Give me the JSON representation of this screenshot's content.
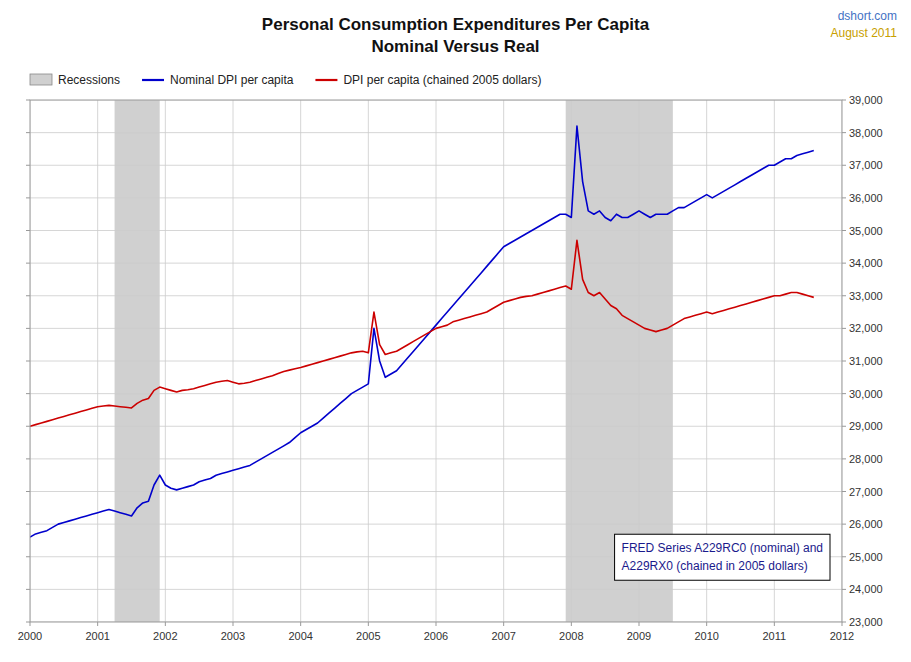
{
  "chart_data": {
    "type": "line",
    "title": "Personal Consumption Expenditures Per Capita",
    "subtitle": "Nominal Versus Real",
    "annotations": [
      "dshort.com",
      "August 2011",
      "FRED Series A229RC0 (nominal) and\nA229RX0 (chained in 2005 dollars)"
    ],
    "annotation_colors": [
      "#4472C4",
      "#C8A000",
      "#1a1a8c"
    ],
    "background_color": "#FFFFFF",
    "grid": true,
    "grid_color": "#CCCCCC",
    "legend": "top-left",
    "xlim": [
      2000,
      2012
    ],
    "ylim": [
      23000,
      39000
    ],
    "xticks": [
      2000,
      2001,
      2002,
      2003,
      2004,
      2005,
      2006,
      2007,
      2008,
      2009,
      2010,
      2011,
      2012
    ],
    "yticks": [
      {
        "value": 23000,
        "label": "23,000"
      },
      {
        "value": 24000,
        "label": "24,000"
      },
      {
        "value": 25000,
        "label": "25,000"
      },
      {
        "value": 26000,
        "label": "26,000"
      },
      {
        "value": 27000,
        "label": "27,000"
      },
      {
        "value": 28000,
        "label": "28,000"
      },
      {
        "value": 29000,
        "label": "29,000"
      },
      {
        "value": 30000,
        "label": "30,000"
      },
      {
        "value": 31000,
        "label": "31,000"
      },
      {
        "value": 32000,
        "label": "32,000"
      },
      {
        "value": 33000,
        "label": "33,000"
      },
      {
        "value": 34000,
        "label": "34,000"
      },
      {
        "value": 35000,
        "label": "35,000"
      },
      {
        "value": 36000,
        "label": "36,000"
      },
      {
        "value": 37000,
        "label": "37,000"
      },
      {
        "value": 38000,
        "label": "38,000"
      },
      {
        "value": 39000,
        "label": "39,000"
      }
    ],
    "recessions": {
      "name": "Recessions",
      "color": "#D0D0D0",
      "ranges": [
        [
          2001.25,
          2001.9167
        ],
        [
          2007.9167,
          2009.5
        ]
      ]
    },
    "x": [
      2000.0,
      2000.083,
      2000.167,
      2000.25,
      2000.333,
      2000.417,
      2000.5,
      2000.583,
      2000.667,
      2000.75,
      2000.833,
      2000.917,
      2001.0,
      2001.083,
      2001.167,
      2001.25,
      2001.333,
      2001.417,
      2001.5,
      2001.583,
      2001.667,
      2001.75,
      2001.833,
      2001.917,
      2002.0,
      2002.083,
      2002.167,
      2002.25,
      2002.333,
      2002.417,
      2002.5,
      2002.583,
      2002.667,
      2002.75,
      2002.833,
      2002.917,
      2003.0,
      2003.083,
      2003.167,
      2003.25,
      2003.333,
      2003.417,
      2003.5,
      2003.583,
      2003.667,
      2003.75,
      2003.833,
      2003.917,
      2004.0,
      2004.083,
      2004.167,
      2004.25,
      2004.333,
      2004.417,
      2004.5,
      2004.583,
      2004.667,
      2004.75,
      2004.833,
      2004.917,
      2005.0,
      2005.083,
      2005.167,
      2005.25,
      2005.333,
      2005.417,
      2005.5,
      2005.583,
      2005.667,
      2005.75,
      2005.833,
      2005.917,
      2006.0,
      2006.083,
      2006.167,
      2006.25,
      2006.333,
      2006.417,
      2006.5,
      2006.583,
      2006.667,
      2006.75,
      2006.833,
      2006.917,
      2007.0,
      2007.083,
      2007.167,
      2007.25,
      2007.333,
      2007.417,
      2007.5,
      2007.583,
      2007.667,
      2007.75,
      2007.833,
      2007.917,
      2008.0,
      2008.083,
      2008.167,
      2008.25,
      2008.333,
      2008.417,
      2008.5,
      2008.583,
      2008.667,
      2008.75,
      2008.833,
      2008.917,
      2009.0,
      2009.083,
      2009.167,
      2009.25,
      2009.333,
      2009.417,
      2009.5,
      2009.583,
      2009.667,
      2009.75,
      2009.833,
      2009.917,
      2010.0,
      2010.083,
      2010.167,
      2010.25,
      2010.333,
      2010.417,
      2010.5,
      2010.583,
      2010.667,
      2010.75,
      2010.833,
      2010.917,
      2011.0,
      2011.083,
      2011.167,
      2011.25,
      2011.333,
      2011.417,
      2011.5,
      2011.583
    ],
    "series": [
      {
        "name": "Nominal DPI per capita",
        "color": "#0000CC",
        "values": [
          25600,
          25700,
          25750,
          25800,
          25900,
          26000,
          26050,
          26100,
          26150,
          26200,
          26250,
          26300,
          26350,
          26400,
          26450,
          26400,
          26350,
          26300,
          26250,
          26500,
          26650,
          26700,
          27200,
          27500,
          27200,
          27100,
          27050,
          27100,
          27150,
          27200,
          27300,
          27350,
          27400,
          27500,
          27550,
          27600,
          27650,
          27700,
          27750,
          27800,
          27900,
          28000,
          28100,
          28200,
          28300,
          28400,
          28500,
          28650,
          28800,
          28900,
          29000,
          29100,
          29250,
          29400,
          29550,
          29700,
          29850,
          30000,
          30100,
          30200,
          30300,
          32000,
          31000,
          30500,
          30600,
          30700,
          30900,
          31100,
          31300,
          31500,
          31700,
          31900,
          32100,
          32300,
          32500,
          32700,
          32900,
          33100,
          33300,
          33500,
          33700,
          33900,
          34100,
          34300,
          34500,
          34600,
          34700,
          34800,
          34900,
          35000,
          35100,
          35200,
          35300,
          35400,
          35500,
          35500,
          35400,
          38200,
          36500,
          35600,
          35500,
          35600,
          35400,
          35300,
          35500,
          35400,
          35400,
          35500,
          35600,
          35500,
          35400,
          35500,
          35500,
          35500,
          35600,
          35700,
          35700,
          35800,
          35900,
          36000,
          36100,
          36000,
          36100,
          36200,
          36300,
          36400,
          36500,
          36600,
          36700,
          36800,
          36900,
          37000,
          37000,
          37100,
          37200,
          37200,
          37300,
          37350,
          37400,
          37450
        ]
      },
      {
        "name": "DPI per capita (chained 2005 dollars)",
        "color": "#CC0000",
        "values": [
          29000,
          29050,
          29100,
          29150,
          29200,
          29250,
          29300,
          29350,
          29400,
          29450,
          29500,
          29550,
          29600,
          29620,
          29640,
          29620,
          29600,
          29580,
          29560,
          29700,
          29800,
          29850,
          30100,
          30200,
          30150,
          30100,
          30050,
          30100,
          30120,
          30150,
          30200,
          30250,
          30300,
          30350,
          30380,
          30400,
          30350,
          30300,
          30320,
          30350,
          30400,
          30450,
          30500,
          30550,
          30620,
          30680,
          30720,
          30760,
          30800,
          30850,
          30900,
          30950,
          31000,
          31050,
          31100,
          31150,
          31200,
          31250,
          31280,
          31300,
          31250,
          32500,
          31500,
          31200,
          31250,
          31300,
          31400,
          31500,
          31600,
          31700,
          31800,
          31900,
          32000,
          32050,
          32100,
          32200,
          32250,
          32300,
          32350,
          32400,
          32450,
          32500,
          32600,
          32700,
          32800,
          32850,
          32900,
          32950,
          32980,
          33000,
          33050,
          33100,
          33150,
          33200,
          33250,
          33300,
          33200,
          34700,
          33500,
          33100,
          33000,
          33100,
          32900,
          32700,
          32600,
          32400,
          32300,
          32200,
          32100,
          32000,
          31950,
          31900,
          31950,
          32000,
          32100,
          32200,
          32300,
          32350,
          32400,
          32450,
          32500,
          32450,
          32500,
          32550,
          32600,
          32650,
          32700,
          32750,
          32800,
          32850,
          32900,
          32950,
          33000,
          33000,
          33050,
          33100,
          33100,
          33050,
          33000,
          32950
        ]
      }
    ]
  }
}
